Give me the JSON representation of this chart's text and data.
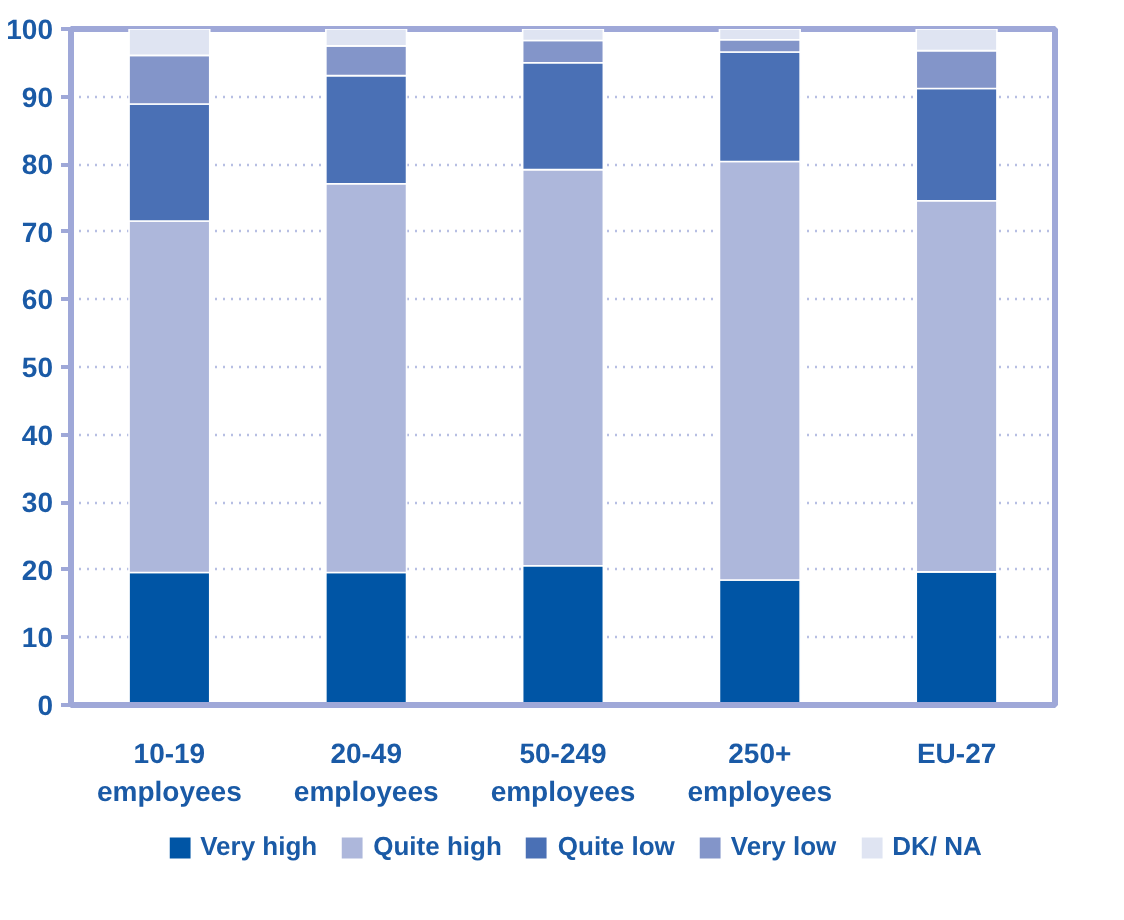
{
  "chart_data": {
    "type": "bar",
    "stacked": true,
    "categories": [
      "10-19 employees",
      "20-49 employees",
      "50-249 employees",
      "250+ employees",
      "EU-27"
    ],
    "series": [
      {
        "name": "Very high",
        "color": "#0055a5",
        "values": [
          19.6,
          19.6,
          20.6,
          18.5,
          19.7
        ]
      },
      {
        "name": "Quite high",
        "color": "#adb7db",
        "values": [
          52.0,
          57.5,
          58.6,
          61.9,
          54.9
        ]
      },
      {
        "name": "Quite low",
        "color": "#4a70b5",
        "values": [
          17.3,
          16.0,
          15.8,
          16.2,
          16.6
        ]
      },
      {
        "name": "Very low",
        "color": "#8395c9",
        "values": [
          7.2,
          4.4,
          3.3,
          1.8,
          5.6
        ]
      },
      {
        "name": "DK/ NA",
        "color": "#dfe4f2",
        "values": [
          3.9,
          2.5,
          1.7,
          1.6,
          3.2
        ]
      }
    ],
    "ylim": [
      0,
      100
    ],
    "yticks": [
      0,
      10,
      20,
      30,
      40,
      50,
      60,
      70,
      80,
      90,
      100
    ],
    "grid": "y",
    "legend": "bottom"
  }
}
